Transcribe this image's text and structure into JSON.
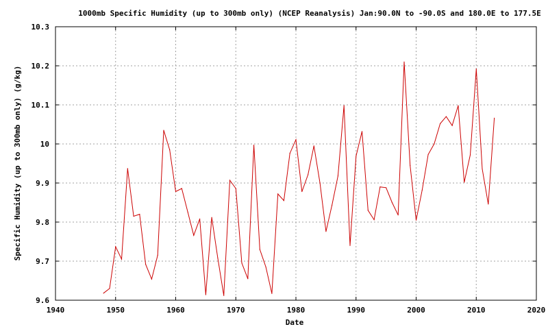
{
  "chart_data": {
    "type": "line",
    "title": "1000mb Specific Humidity (up to 300mb only) (NCEP Reanalysis) Jan:90.0N to -90.0S and 180.0E to 177.5E",
    "xlabel": "Date",
    "ylabel": "Specific Humidity (up to 300mb only) (g/kg)",
    "xlim": [
      1940,
      2020
    ],
    "ylim": [
      9.6,
      10.3
    ],
    "xticks": [
      "1940",
      "1950",
      "1960",
      "1970",
      "1980",
      "1990",
      "2000",
      "2010",
      "2020"
    ],
    "yticks": [
      "9.6",
      "9.7",
      "9.8",
      "9.9",
      "10",
      "10.1",
      "10.2",
      "10.3"
    ],
    "grid": true,
    "line_color": "#cc0000",
    "series": [
      {
        "x": [
          1948,
          1949,
          1950,
          1951,
          1952,
          1953,
          1954,
          1955,
          1956,
          1957,
          1958,
          1959,
          1960,
          1961,
          1962,
          1963,
          1964,
          1965,
          1966,
          1967,
          1968,
          1969,
          1970,
          1971,
          1972,
          1973,
          1974,
          1975,
          1976,
          1977,
          1978,
          1979,
          1980,
          1981,
          1982,
          1983,
          1984,
          1985,
          1986,
          1987,
          1988,
          1989,
          1990,
          1991,
          1992,
          1993,
          1994,
          1995,
          1996,
          1997,
          1998,
          1999,
          2000,
          2001,
          2002,
          2003,
          2004,
          2005,
          2006,
          2007,
          2008,
          2009,
          2010,
          2011,
          2012,
          2013
        ],
        "values": [
          9.618,
          9.63,
          9.737,
          9.705,
          9.937,
          9.815,
          9.82,
          9.692,
          9.654,
          9.715,
          10.035,
          9.985,
          9.878,
          9.886,
          9.826,
          9.766,
          9.808,
          9.614,
          9.812,
          9.708,
          9.612,
          9.907,
          9.886,
          9.695,
          9.655,
          9.997,
          9.73,
          9.685,
          9.617,
          9.872,
          9.855,
          9.976,
          10.011,
          9.878,
          9.921,
          9.995,
          9.9,
          9.776,
          9.843,
          9.918,
          10.098,
          9.74,
          9.969,
          10.032,
          9.83,
          9.806,
          9.89,
          9.888,
          9.85,
          9.818,
          10.21,
          9.945,
          9.805,
          9.882,
          9.973,
          10.0,
          10.052,
          10.07,
          10.047,
          10.098,
          9.902,
          9.972,
          10.192,
          9.936,
          9.846,
          10.066
        ]
      }
    ]
  }
}
